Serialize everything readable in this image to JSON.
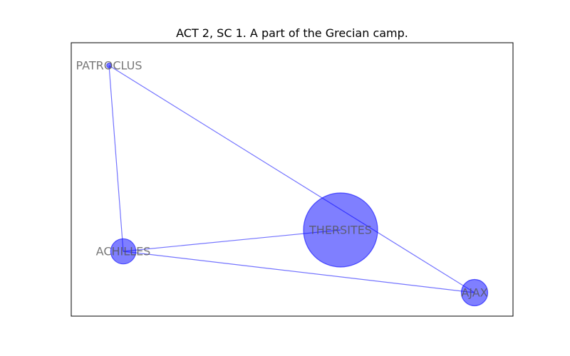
{
  "chart_data": {
    "type": "network",
    "title": "ACT 2, SC 1. A part of the Grecian camp.",
    "colors": {
      "node": "#0000ff",
      "edge": "#0000ff",
      "label": "#555555"
    },
    "nodes": [
      {
        "id": "THERSITES",
        "label": "THERSITES",
        "weight": 26
      },
      {
        "id": "AJAX",
        "label": "AJAX",
        "weight": 3.3
      },
      {
        "id": "ACHILLES",
        "label": "ACHILLES",
        "weight": 3
      },
      {
        "id": "PATROCLUS",
        "label": "PATROCLUS",
        "weight": 0.1
      }
    ],
    "edges": [
      {
        "source": "PATROCLUS",
        "target": "ACHILLES"
      },
      {
        "source": "PATROCLUS",
        "target": "AJAX"
      },
      {
        "source": "ACHILLES",
        "target": "THERSITES"
      },
      {
        "source": "ACHILLES",
        "target": "AJAX"
      }
    ]
  }
}
